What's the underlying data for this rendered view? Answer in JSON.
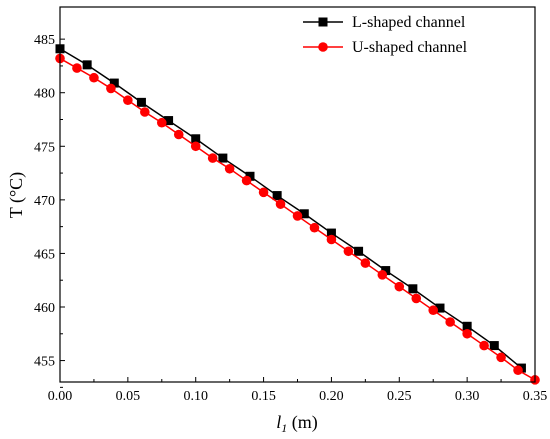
{
  "chart_data": {
    "type": "line",
    "xlabel_main": "l",
    "xlabel_sub": "1",
    "xlabel_unit": " (m)",
    "ylabel": "T (°C)",
    "xlim": [
      0.0,
      0.35
    ],
    "ylim": [
      453,
      488
    ],
    "xticks": [
      "0.00",
      "0.05",
      "0.10",
      "0.15",
      "0.20",
      "0.25",
      "0.30",
      "0.35"
    ],
    "yticks": [
      "455",
      "460",
      "465",
      "470",
      "475",
      "480",
      "485"
    ],
    "legend_position": "top-right",
    "series": [
      {
        "name": "L-shaped channel",
        "color": "#000000",
        "marker": "square",
        "x": [
          0.0,
          0.02,
          0.04,
          0.06,
          0.08,
          0.1,
          0.12,
          0.14,
          0.16,
          0.18,
          0.2,
          0.22,
          0.24,
          0.26,
          0.28,
          0.3,
          0.32,
          0.34
        ],
        "y": [
          484.1,
          482.6,
          480.9,
          479.1,
          477.4,
          475.7,
          473.9,
          472.2,
          470.4,
          468.7,
          466.9,
          465.2,
          463.4,
          461.7,
          459.9,
          458.2,
          456.4,
          454.3
        ]
      },
      {
        "name": "U-shaped channel",
        "color": "#ff0000",
        "marker": "circle",
        "x": [
          0.0,
          0.0125,
          0.025,
          0.0375,
          0.05,
          0.0625,
          0.075,
          0.0875,
          0.1,
          0.1125,
          0.125,
          0.1375,
          0.15,
          0.1625,
          0.175,
          0.1875,
          0.2,
          0.2125,
          0.225,
          0.2375,
          0.25,
          0.2625,
          0.275,
          0.2875,
          0.3,
          0.3125,
          0.325,
          0.3375,
          0.35
        ],
        "y": [
          483.2,
          482.3,
          481.4,
          480.4,
          479.3,
          478.2,
          477.2,
          476.1,
          475.0,
          473.9,
          472.9,
          471.8,
          470.7,
          469.6,
          468.5,
          467.4,
          466.3,
          465.2,
          464.1,
          463.0,
          461.9,
          460.8,
          459.7,
          458.6,
          457.5,
          456.4,
          455.3,
          454.1,
          453.2
        ]
      }
    ]
  }
}
